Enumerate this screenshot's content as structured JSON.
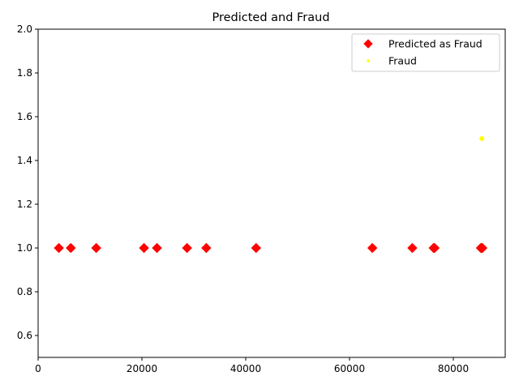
{
  "chart_data": {
    "type": "scatter",
    "title": "Predicted and Fraud",
    "xlabel": "",
    "ylabel": "",
    "xlim": [
      0,
      90000
    ],
    "ylim": [
      0.5,
      2.0
    ],
    "xticks": [
      0,
      20000,
      40000,
      60000,
      80000
    ],
    "xtick_labels": [
      "0",
      "20000",
      "40000",
      "60000",
      "80000"
    ],
    "yticks": [
      0.6,
      0.8,
      1.0,
      1.2,
      1.4,
      1.6,
      1.8,
      2.0
    ],
    "ytick_labels": [
      "0.6",
      "0.8",
      "1.0",
      "1.2",
      "1.4",
      "1.6",
      "1.8",
      "2.0"
    ],
    "grid": false,
    "legend_placement": "top-right",
    "series": [
      {
        "name": "Predicted as Fraud",
        "marker": "diamond",
        "color": "#ff0000",
        "x": [
          4000,
          6300,
          11200,
          20400,
          22900,
          28700,
          32400,
          42000,
          64400,
          72100,
          76200,
          76400,
          85300,
          85500,
          85600
        ],
        "y": [
          1,
          1,
          1,
          1,
          1,
          1,
          1,
          1,
          1,
          1,
          1,
          1,
          1,
          1,
          1
        ]
      },
      {
        "name": "Fraud",
        "marker": "dot",
        "color": "#ffff00",
        "x": [
          85500
        ],
        "y": [
          1.5
        ]
      }
    ]
  }
}
